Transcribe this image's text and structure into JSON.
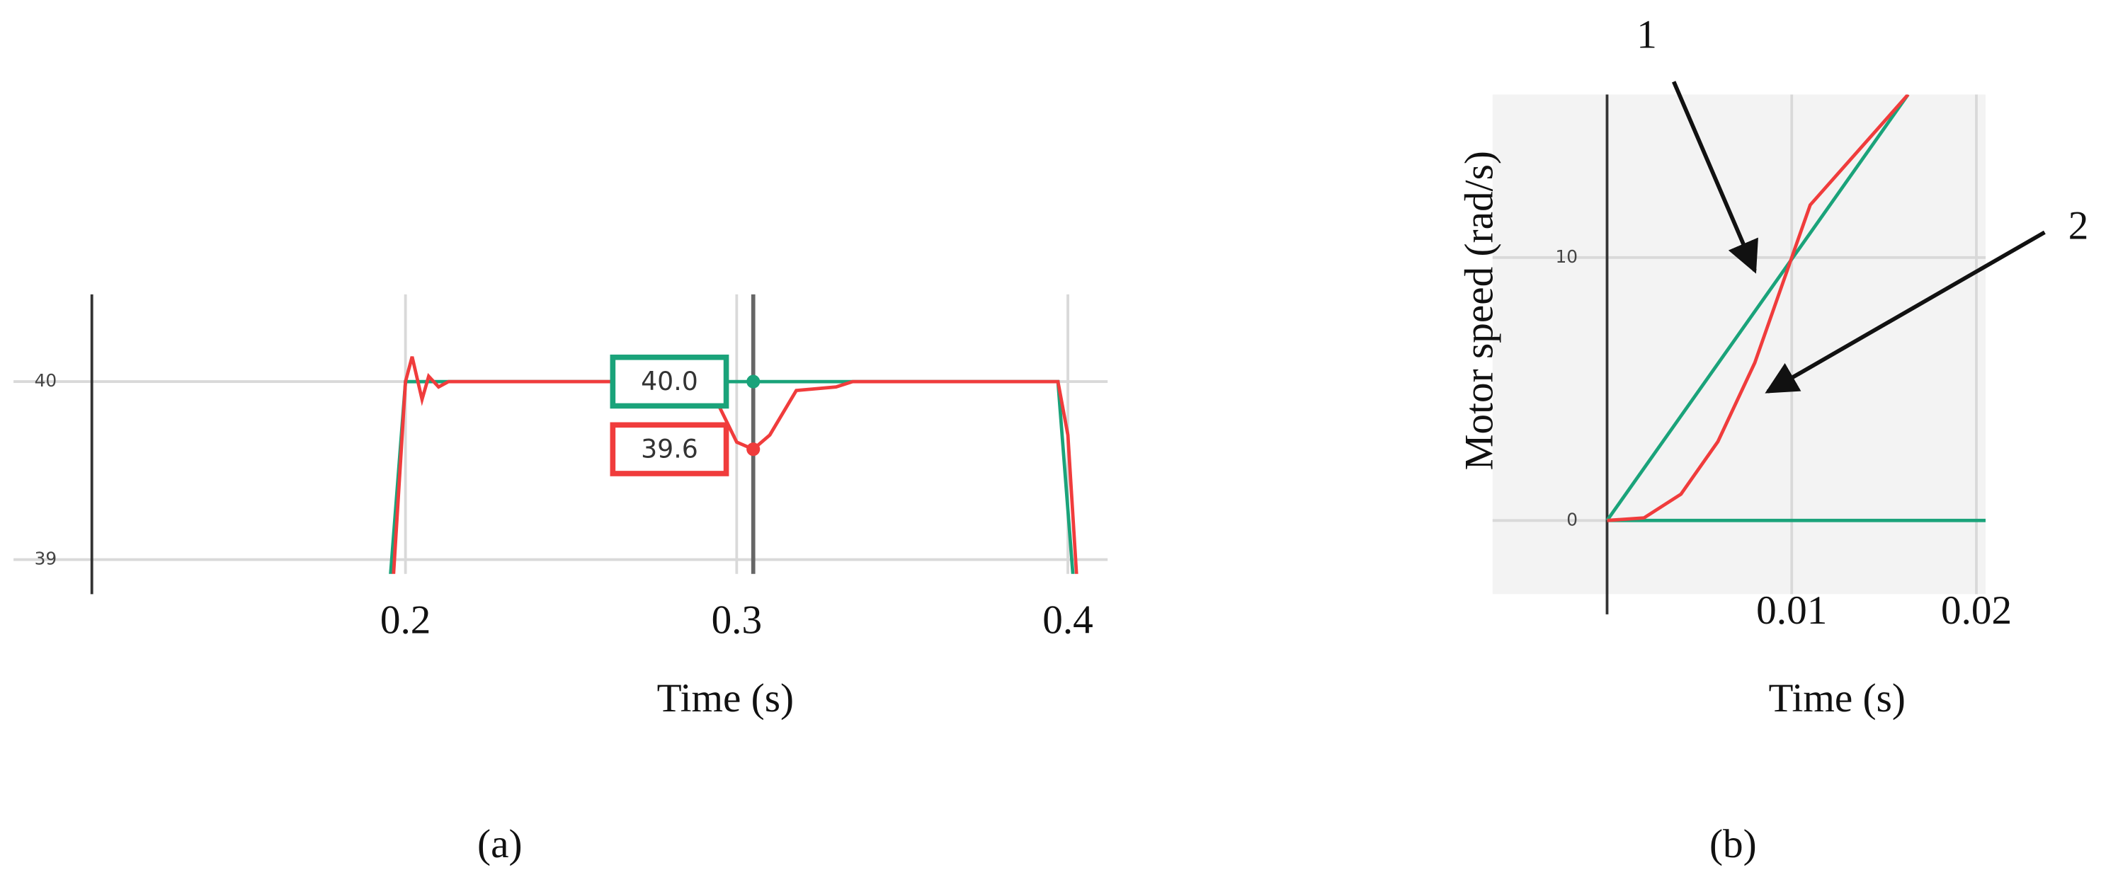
{
  "chart_data": [
    {
      "type": "line",
      "caption": "(a)",
      "x_label": "Time (s)",
      "xlim": [
        0.1053,
        0.412
      ],
      "ylim": [
        38.92,
        40.49
      ],
      "xticks": [
        0.2,
        0.3,
        0.4
      ],
      "yticks": [
        39,
        40
      ],
      "grid": true,
      "cursor_x": 0.305,
      "series": [
        {
          "color": "#1aa37a",
          "x": [
            0.195,
            0.2,
            0.397,
            0.402
          ],
          "values": [
            38.8,
            40,
            40,
            38.8
          ]
        },
        {
          "color": "#f03c3c",
          "x": [
            0.196,
            0.2,
            0.202,
            0.205,
            0.207,
            0.21,
            0.213,
            0.29,
            0.295,
            0.3,
            0.305,
            0.31,
            0.318,
            0.33,
            0.335,
            0.397,
            0.4,
            0.403
          ],
          "values": [
            38.8,
            40,
            40.14,
            39.9,
            40.03,
            39.97,
            40,
            40,
            39.85,
            39.66,
            39.62,
            39.7,
            39.95,
            39.97,
            40,
            40,
            39.7,
            38.8
          ]
        }
      ],
      "annotations": [
        {
          "text": "40.0",
          "x": 0.305,
          "y": 40,
          "color": "#1aa37a"
        },
        {
          "text": "39.6",
          "x": 0.305,
          "y": 39.62,
          "color": "#f03c3c"
        }
      ]
    },
    {
      "type": "line",
      "caption": "(b)",
      "x_label": "Time (s)",
      "y_label": "Motor speed (rad/s)",
      "xlim": [
        -0.0062,
        0.0205
      ],
      "ylim": [
        -2.8,
        16.2
      ],
      "xticks": [
        0.01,
        0.02
      ],
      "yticks": [
        0,
        10
      ],
      "grid": true,
      "background": "#f3f3f3",
      "series": [
        {
          "color": "#1aa37a",
          "x": [
            0,
            0.0163
          ],
          "values": [
            0,
            16.2
          ]
        },
        {
          "color": "#1aa37a",
          "x": [
            0,
            0.0205
          ],
          "values": [
            0,
            0
          ]
        },
        {
          "color": "#f03c3c",
          "x": [
            0,
            0.002,
            0.004,
            0.006,
            0.008,
            0.0095,
            0.011,
            0.0163
          ],
          "values": [
            0,
            0.1,
            1,
            3,
            6,
            9,
            12,
            16.2
          ]
        }
      ],
      "annotations": [
        {
          "text": "1",
          "x": 0.008,
          "y": 9.5
        },
        {
          "text": "2",
          "x": 0.0087,
          "y": 4.9
        }
      ]
    }
  ]
}
